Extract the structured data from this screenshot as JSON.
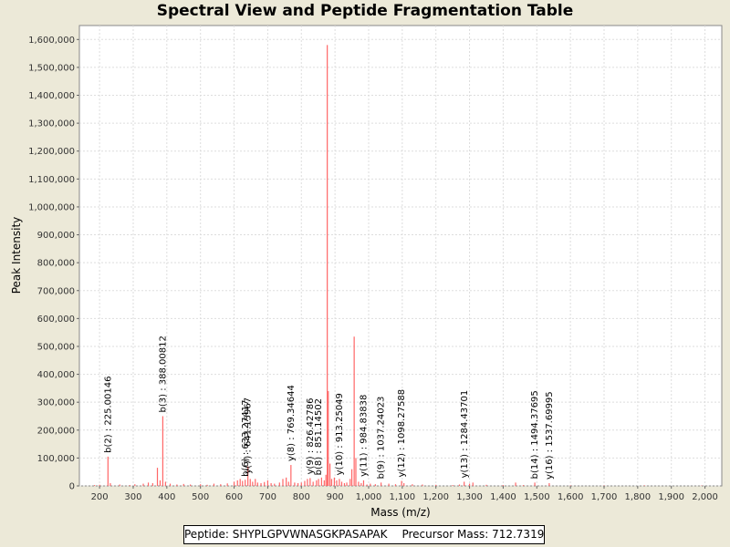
{
  "chart_data": {
    "type": "bar",
    "title": "Spectral View and Peptide Fragmentation Table",
    "xlabel": "Mass (m/z)",
    "ylabel": "Peak Intensity",
    "xlim": [
      140,
      2050
    ],
    "ylim": [
      0,
      1650000
    ],
    "xticks": [
      200,
      300,
      400,
      500,
      600,
      700,
      800,
      900,
      1000,
      1100,
      1200,
      1300,
      1400,
      1500,
      1600,
      1700,
      1800,
      1900,
      2000
    ],
    "xtick_labels": [
      "200",
      "300",
      "400",
      "500",
      "600",
      "700",
      "800",
      "900",
      "1,000",
      "1,100",
      "1,200",
      "1,300",
      "1,400",
      "1,500",
      "1,600",
      "1,700",
      "1,800",
      "1,900",
      "2,000"
    ],
    "yticks": [
      0,
      100000,
      200000,
      300000,
      400000,
      500000,
      600000,
      700000,
      800000,
      900000,
      1000000,
      1100000,
      1200000,
      1300000,
      1400000,
      1500000,
      1600000
    ],
    "ytick_labels": [
      "0",
      "100,000",
      "200,000",
      "300,000",
      "400,000",
      "500,000",
      "600,000",
      "700,000",
      "800,000",
      "900,000",
      "1,000,000",
      "1,100,000",
      "1,200,000",
      "1,300,000",
      "1,400,000",
      "1,500,000",
      "1,600,000"
    ],
    "grid": true,
    "color": "#ff6666",
    "peaks": [
      [
        185,
        3000
      ],
      [
        200,
        4000
      ],
      [
        225,
        105000
      ],
      [
        232,
        10000
      ],
      [
        260,
        5000
      ],
      [
        290,
        3000
      ],
      [
        305,
        6000
      ],
      [
        330,
        8000
      ],
      [
        345,
        12000
      ],
      [
        358,
        10000
      ],
      [
        372,
        65000
      ],
      [
        380,
        20000
      ],
      [
        388,
        250000
      ],
      [
        396,
        15000
      ],
      [
        410,
        8000
      ],
      [
        430,
        5000
      ],
      [
        450,
        7000
      ],
      [
        470,
        5000
      ],
      [
        500,
        6000
      ],
      [
        520,
        4000
      ],
      [
        540,
        8000
      ],
      [
        560,
        6000
      ],
      [
        580,
        9000
      ],
      [
        600,
        15000
      ],
      [
        610,
        20000
      ],
      [
        618,
        25000
      ],
      [
        625,
        18000
      ],
      [
        633,
        22000
      ],
      [
        641,
        70000
      ],
      [
        648,
        25000
      ],
      [
        655,
        15000
      ],
      [
        663,
        25000
      ],
      [
        670,
        12000
      ],
      [
        680,
        10000
      ],
      [
        690,
        14000
      ],
      [
        700,
        20000
      ],
      [
        710,
        10000
      ],
      [
        720,
        8000
      ],
      [
        735,
        12000
      ],
      [
        745,
        25000
      ],
      [
        755,
        30000
      ],
      [
        762,
        15000
      ],
      [
        769,
        75000
      ],
      [
        780,
        12000
      ],
      [
        790,
        10000
      ],
      [
        800,
        12000
      ],
      [
        810,
        18000
      ],
      [
        818,
        25000
      ],
      [
        826,
        28000
      ],
      [
        835,
        15000
      ],
      [
        845,
        20000
      ],
      [
        851,
        25000
      ],
      [
        860,
        30000
      ],
      [
        868,
        20000
      ],
      [
        873,
        40000
      ],
      [
        877,
        1580000
      ],
      [
        880,
        340000
      ],
      [
        885,
        80000
      ],
      [
        890,
        25000
      ],
      [
        898,
        30000
      ],
      [
        905,
        20000
      ],
      [
        913,
        25000
      ],
      [
        920,
        15000
      ],
      [
        928,
        10000
      ],
      [
        935,
        12000
      ],
      [
        945,
        25000
      ],
      [
        950,
        60000
      ],
      [
        957,
        535000
      ],
      [
        962,
        100000
      ],
      [
        970,
        15000
      ],
      [
        978,
        10000
      ],
      [
        985,
        20000
      ],
      [
        995,
        5000
      ],
      [
        1005,
        8000
      ],
      [
        1020,
        6000
      ],
      [
        1037,
        12000
      ],
      [
        1060,
        8000
      ],
      [
        1080,
        6000
      ],
      [
        1098,
        18000
      ],
      [
        1105,
        10000
      ],
      [
        1130,
        6000
      ],
      [
        1160,
        5000
      ],
      [
        1200,
        4000
      ],
      [
        1250,
        3000
      ],
      [
        1270,
        5000
      ],
      [
        1284,
        15000
      ],
      [
        1300,
        8000
      ],
      [
        1310,
        12000
      ],
      [
        1350,
        4000
      ],
      [
        1400,
        3000
      ],
      [
        1437,
        12000
      ],
      [
        1460,
        3000
      ],
      [
        1494,
        12000
      ],
      [
        1537,
        10000
      ],
      [
        1600,
        2000
      ],
      [
        1700,
        1500
      ],
      [
        1820,
        2000
      ],
      [
        1990,
        1500
      ]
    ],
    "annotations": [
      {
        "x": 225.00146,
        "y": 105000,
        "label": "b(2) : 225.00146"
      },
      {
        "x": 388.00812,
        "y": 250000,
        "label": "b(3) : 388.00812"
      },
      {
        "x": 641.15967,
        "y": 30000,
        "label": "y(7) : 641.15967"
      },
      {
        "x": 633.27417,
        "y": 20000,
        "label": "b(6) : 633.27417"
      },
      {
        "x": 769.34644,
        "y": 75000,
        "label": "y(8) : 769.34644"
      },
      {
        "x": 826.42786,
        "y": 28000,
        "label": "y(9) : 826.42786"
      },
      {
        "x": 851.14502,
        "y": 25000,
        "label": "b(8) : 851.14502"
      },
      {
        "x": 913.25049,
        "y": 25000,
        "label": "y(10) : 913.25049"
      },
      {
        "x": 984.83838,
        "y": 20000,
        "label": "y(11) : 984.83838"
      },
      {
        "x": 1037.24023,
        "y": 12000,
        "label": "b(9) : 1037.24023"
      },
      {
        "x": 1098.27588,
        "y": 18000,
        "label": "y(12) : 1098.27588"
      },
      {
        "x": 1284.43701,
        "y": 15000,
        "label": "y(13) : 1284.43701"
      },
      {
        "x": 1494.37695,
        "y": 12000,
        "label": "b(14) : 1494.37695"
      },
      {
        "x": 1537.69995,
        "y": 10000,
        "label": "y(16) : 1537.69995"
      }
    ]
  },
  "footer": {
    "peptide": "Peptide: SHYPLGPVWNASGKPASAPAK",
    "precursor": "Precursor Mass: 712.7319"
  }
}
